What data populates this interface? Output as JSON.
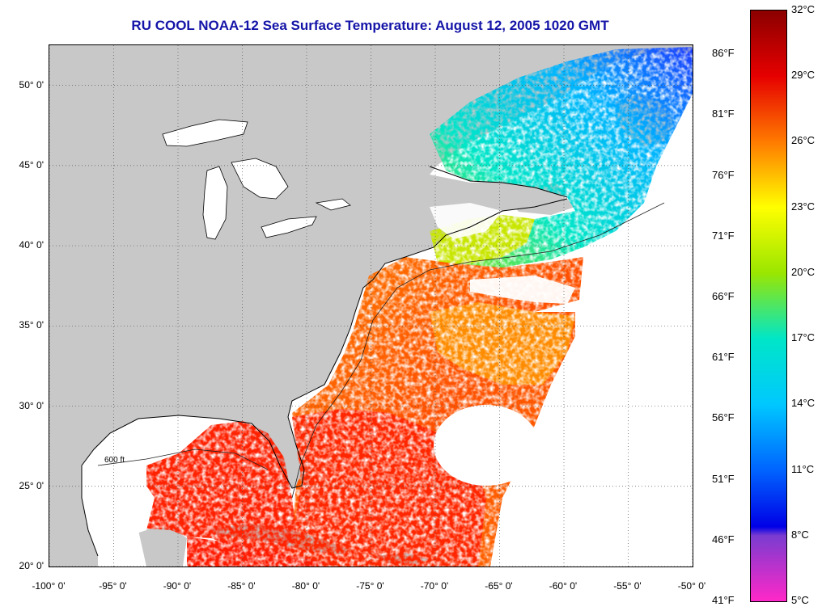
{
  "title": "RU COOL  NOAA-12  Sea Surface Temperature:  August 12, 2005 1020 GMT",
  "map": {
    "lon_range": [
      -100,
      -50
    ],
    "lat_range": [
      20,
      52.5
    ],
    "grid": true,
    "lat_ticks": [
      {
        "value": 50,
        "label": "50° 0'"
      },
      {
        "value": 45,
        "label": "45° 0'"
      },
      {
        "value": 40,
        "label": "40° 0'"
      },
      {
        "value": 35,
        "label": "35° 0'"
      },
      {
        "value": 30,
        "label": "30° 0'"
      },
      {
        "value": 25,
        "label": "25° 0'"
      },
      {
        "value": 20,
        "label": "20° 0'"
      }
    ],
    "lon_ticks": [
      {
        "value": -100,
        "label": "-100° 0'"
      },
      {
        "value": -95,
        "label": "-95° 0'"
      },
      {
        "value": -90,
        "label": "-90° 0'"
      },
      {
        "value": -85,
        "label": "-85° 0'"
      },
      {
        "value": -80,
        "label": "-80° 0'"
      },
      {
        "value": -75,
        "label": "-75° 0'"
      },
      {
        "value": -70,
        "label": "-70° 0'"
      },
      {
        "value": -65,
        "label": "-65° 0'"
      },
      {
        "value": -60,
        "label": "-60° 0'"
      },
      {
        "value": -55,
        "label": "-55° 0'"
      },
      {
        "value": -50,
        "label": "-50° 0'"
      }
    ],
    "contour_label": "600 ft",
    "colors": {
      "land": "#c8c8c8",
      "no_data": "#ffffff",
      "grid": "#555555"
    }
  },
  "colorbar": {
    "celsius_range": [
      5,
      32
    ],
    "fahrenheit_range": [
      41,
      89.6
    ],
    "celsius_labels": [
      "32°C",
      "29°C",
      "26°C",
      "23°C",
      "20°C",
      "17°C",
      "14°C",
      "11°C",
      "8°C",
      "5°C"
    ],
    "celsius_values": [
      32,
      29,
      26,
      23,
      20,
      17,
      14,
      11,
      8,
      5
    ],
    "fahrenheit_labels": [
      "86°F",
      "81°F",
      "76°F",
      "71°F",
      "66°F",
      "61°F",
      "56°F",
      "51°F",
      "46°F",
      "41°F"
    ],
    "fahrenheit_values": [
      86,
      81,
      76,
      71,
      66,
      61,
      56,
      51,
      46,
      41
    ],
    "gradient_stops": [
      {
        "c": 32,
        "color": "#8b0000"
      },
      {
        "c": 29,
        "color": "#e60000"
      },
      {
        "c": 26,
        "color": "#ff7a00"
      },
      {
        "c": 23,
        "color": "#ffff00"
      },
      {
        "c": 20,
        "color": "#9ae600"
      },
      {
        "c": 17,
        "color": "#00e6c8"
      },
      {
        "c": 14,
        "color": "#00c8ff"
      },
      {
        "c": 11,
        "color": "#0064ff"
      },
      {
        "c": 8.4,
        "color": "#0000e6"
      },
      {
        "c": 8,
        "color": "#7a3cd0"
      },
      {
        "c": 5,
        "color": "#ff28c8"
      }
    ]
  }
}
